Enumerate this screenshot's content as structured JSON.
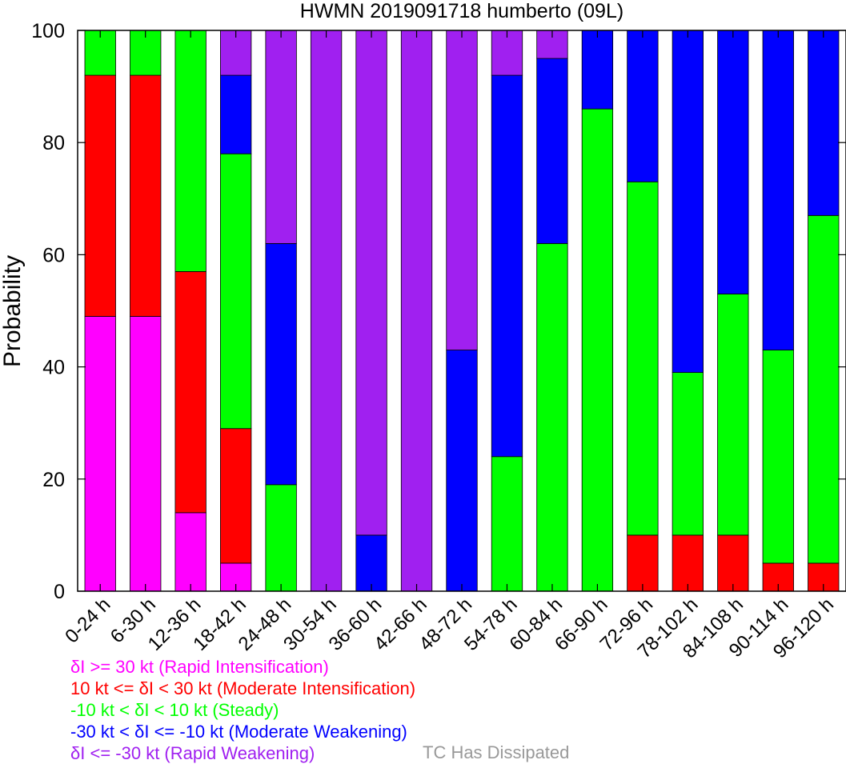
{
  "chart_data": {
    "type": "bar",
    "stacked": true,
    "title": "HWMN 2019091718 humberto (09L)",
    "xlabel": "",
    "ylabel": "Probability",
    "ylim": [
      0,
      100
    ],
    "yticks": [
      0,
      20,
      40,
      60,
      80,
      100
    ],
    "grid": false,
    "categories": [
      "0-24 h",
      "6-30 h",
      "12-36 h",
      "18-42 h",
      "24-48 h",
      "30-54 h",
      "36-60 h",
      "42-66 h",
      "48-72 h",
      "54-78 h",
      "60-84 h",
      "66-90 h",
      "72-96 h",
      "78-102 h",
      "84-108 h",
      "90-114 h",
      "96-120 h"
    ],
    "series": [
      {
        "key": "ri",
        "values": [
          49,
          49,
          14,
          5,
          0,
          0,
          0,
          0,
          0,
          0,
          0,
          0,
          0,
          0,
          0,
          0,
          0
        ]
      },
      {
        "key": "mi",
        "values": [
          43,
          43,
          43,
          24,
          0,
          0,
          0,
          0,
          0,
          0,
          0,
          0,
          10,
          10,
          10,
          5,
          5
        ]
      },
      {
        "key": "st",
        "values": [
          8,
          8,
          43,
          49,
          19,
          0,
          0,
          0,
          0,
          24,
          62,
          86,
          63,
          29,
          43,
          38,
          62
        ]
      },
      {
        "key": "mw",
        "values": [
          0,
          0,
          0,
          14,
          43,
          0,
          10,
          0,
          43,
          68,
          33,
          14,
          27,
          61,
          47,
          57,
          33
        ]
      },
      {
        "key": "rw",
        "values": [
          0,
          0,
          0,
          8,
          38,
          100,
          90,
          100,
          57,
          8,
          5,
          0,
          0,
          0,
          0,
          0,
          0
        ]
      }
    ],
    "colors": {
      "ri": "#ff00ff",
      "mi": "#ff0000",
      "st": "#00ff00",
      "mw": "#0000ff",
      "rw": "#a020f0",
      "dissipated": "#999999"
    },
    "legend": [
      {
        "key": "ri",
        "label": "δI >= 30 kt (Rapid Intensification)"
      },
      {
        "key": "mi",
        "label": "10 kt <= δI < 30 kt (Moderate Intensification)"
      },
      {
        "key": "st",
        "label": "-10 kt < δI < 10 kt (Steady)"
      },
      {
        "key": "mw",
        "label": "-30 kt < δI <= -10 kt (Moderate Weakening)"
      },
      {
        "key": "rw",
        "label": "δI <= -30 kt (Rapid Weakening)"
      }
    ],
    "dissipated_label": "TC Has Dissipated",
    "legend_position": "bottom"
  }
}
